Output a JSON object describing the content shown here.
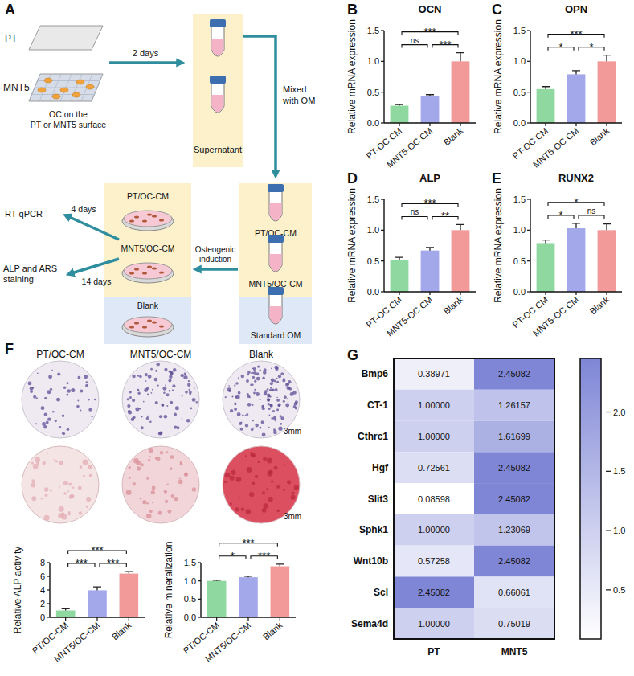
{
  "diagram": {
    "panel": "A",
    "plates": [
      "PT",
      "MNT5"
    ],
    "plate_note": "OC on the PT or MNT5 surface",
    "transfer_time": "2 days",
    "supernatant_label": "Supernatant",
    "mix_label": "Mixed with OM",
    "media": [
      "PT/OC-CM",
      "MNT5/OC-CM",
      "Standard OM"
    ],
    "induction_label": "Osteogenic induction",
    "cultures": [
      "PT/OC-CM",
      "MNT5/OC-CM",
      "Blank"
    ],
    "outputs": [
      {
        "label": "RT-qPCR",
        "time": "4 days"
      },
      {
        "label": "ALP and ARS staining",
        "time": "14 days"
      }
    ]
  },
  "staining": {
    "panel": "F",
    "columns": [
      "PT/OC-CM",
      "MNT5/OC-CM",
      "Blank"
    ],
    "scale_label": "3mm"
  },
  "chart_data": [
    {
      "type": "bar",
      "panel": "B",
      "title": "OCN",
      "y_label": "Relative mRNA expression",
      "categories": [
        "PT-OC CM",
        "MNT5-OC CM",
        "Blank"
      ],
      "values": [
        0.28,
        0.43,
        1.0
      ],
      "errors": [
        0.02,
        0.03,
        0.14
      ],
      "colors": [
        "#8fd8a0",
        "#a3a8ea",
        "#f29a9a"
      ],
      "ylim": [
        0,
        1.5
      ],
      "yticks": [
        {
          "value": 0,
          "label": "0.0"
        },
        {
          "value": 0.5,
          "label": "0.5"
        },
        {
          "value": 1,
          "label": "1.0"
        },
        {
          "value": 1.5,
          "label": "1.5"
        }
      ],
      "annotations": [
        {
          "between": [
            "PT-OC CM",
            "Blank"
          ],
          "label": "***"
        },
        {
          "between": [
            "PT-OC CM",
            "MNT5-OC CM"
          ],
          "label": "ns"
        },
        {
          "between": [
            "MNT5-OC CM",
            "Blank"
          ],
          "label": "***"
        }
      ]
    },
    {
      "type": "bar",
      "panel": "C",
      "title": "OPN",
      "y_label": "Relative mRNA expression",
      "categories": [
        "PT-OC CM",
        "MNT5-OC CM",
        "Blank"
      ],
      "values": [
        0.55,
        0.79,
        1.0
      ],
      "errors": [
        0.04,
        0.06,
        0.1
      ],
      "colors": [
        "#8fd8a0",
        "#a3a8ea",
        "#f29a9a"
      ],
      "ylim": [
        0,
        1.5
      ],
      "yticks": [
        {
          "value": 0,
          "label": "0.0"
        },
        {
          "value": 0.5,
          "label": "0.5"
        },
        {
          "value": 1,
          "label": "1.0"
        },
        {
          "value": 1.5,
          "label": "1.5"
        }
      ],
      "annotations": [
        {
          "between": [
            "PT-OC CM",
            "Blank"
          ],
          "label": "***"
        },
        {
          "between": [
            "PT-OC CM",
            "MNT5-OC CM"
          ],
          "label": "*"
        },
        {
          "between": [
            "MNT5-OC CM",
            "Blank"
          ],
          "label": "*"
        }
      ]
    },
    {
      "type": "bar",
      "panel": "D",
      "title": "ALP",
      "y_label": "Relative mRNA expression",
      "categories": [
        "PT-OC CM",
        "MNT5-OC CM",
        "Blank"
      ],
      "values": [
        0.52,
        0.67,
        1.0
      ],
      "errors": [
        0.04,
        0.05,
        0.09
      ],
      "colors": [
        "#8fd8a0",
        "#a3a8ea",
        "#f29a9a"
      ],
      "ylim": [
        0,
        1.5
      ],
      "yticks": [
        {
          "value": 0,
          "label": "0.0"
        },
        {
          "value": 0.5,
          "label": "0.5"
        },
        {
          "value": 1,
          "label": "1.0"
        },
        {
          "value": 1.5,
          "label": "1.5"
        }
      ],
      "annotations": [
        {
          "between": [
            "PT-OC CM",
            "Blank"
          ],
          "label": "***"
        },
        {
          "between": [
            "PT-OC CM",
            "MNT5-OC CM"
          ],
          "label": "ns"
        },
        {
          "between": [
            "MNT5-OC CM",
            "Blank"
          ],
          "label": "**"
        }
      ]
    },
    {
      "type": "bar",
      "panel": "E",
      "title": "RUNX2",
      "y_label": "Relative mRNA expression",
      "categories": [
        "PT-OC CM",
        "MNT5-OC CM",
        "Blank"
      ],
      "values": [
        0.79,
        1.03,
        1.0
      ],
      "errors": [
        0.05,
        0.08,
        0.1
      ],
      "colors": [
        "#8fd8a0",
        "#a3a8ea",
        "#f29a9a"
      ],
      "ylim": [
        0,
        1.5
      ],
      "yticks": [
        {
          "value": 0,
          "label": "0.0"
        },
        {
          "value": 0.5,
          "label": "0.5"
        },
        {
          "value": 1,
          "label": "1.0"
        },
        {
          "value": 1.5,
          "label": "1.5"
        }
      ],
      "annotations": [
        {
          "between": [
            "PT-OC CM",
            "Blank"
          ],
          "label": "*"
        },
        {
          "between": [
            "PT-OC CM",
            "MNT5-OC CM"
          ],
          "label": "*"
        },
        {
          "between": [
            "MNT5-OC CM",
            "Blank"
          ],
          "label": "ns"
        }
      ]
    },
    {
      "type": "bar",
      "y_label": "Relative ALP activity",
      "categories": [
        "PT/OC-CM",
        "MNT5/OC-CM",
        "Blank"
      ],
      "values": [
        1.0,
        3.95,
        6.4
      ],
      "errors": [
        0.25,
        0.5,
        0.3
      ],
      "colors": [
        "#8fd8a0",
        "#a3a8ea",
        "#f29a9a"
      ],
      "ylim": [
        0,
        8
      ],
      "yticks": [
        0,
        2,
        4,
        6,
        8
      ],
      "annotations": [
        {
          "between": [
            "PT/OC-CM",
            "Blank"
          ],
          "label": "***"
        },
        {
          "between": [
            "PT/OC-CM",
            "MNT5/OC-CM"
          ],
          "label": "***"
        },
        {
          "between": [
            "MNT5/OC-CM",
            "Blank"
          ],
          "label": "***"
        }
      ]
    },
    {
      "type": "bar",
      "y_label": "Relative mineralization",
      "categories": [
        "PT/OC-CM",
        "MNT5/OC-CM",
        "Blank"
      ],
      "values": [
        1.0,
        1.1,
        1.4
      ],
      "errors": [
        0.02,
        0.03,
        0.06
      ],
      "colors": [
        "#8fd8a0",
        "#a3a8ea",
        "#f29a9a"
      ],
      "ylim": [
        0,
        1.5
      ],
      "yticks": [
        {
          "value": 0,
          "label": "0.0"
        },
        {
          "value": 0.5,
          "label": "0.5"
        },
        {
          "value": 1,
          "label": "1.0"
        },
        {
          "value": 1.5,
          "label": "1.5"
        }
      ],
      "annotations": [
        {
          "between": [
            "PT/OC-CM",
            "Blank"
          ],
          "label": "***"
        },
        {
          "between": [
            "PT/OC-CM",
            "MNT5/OC-CM"
          ],
          "label": "*"
        },
        {
          "between": [
            "MNT5/OC-CM",
            "Blank"
          ],
          "label": "***"
        }
      ]
    },
    {
      "type": "heatmap",
      "panel": "G",
      "rows": [
        "Bmp6",
        "CT-1",
        "Cthrc1",
        "Hgf",
        "Slit3",
        "Sphk1",
        "Wnt10b",
        "Scl",
        "Sema4d"
      ],
      "columns": [
        "PT",
        "MNT5"
      ],
      "values": [
        [
          0.38971,
          2.45082
        ],
        [
          1.0,
          1.26157
        ],
        [
          1.0,
          1.61699
        ],
        [
          0.72561,
          2.45082
        ],
        [
          0.08598,
          2.45082
        ],
        [
          1.0,
          1.23069
        ],
        [
          0.57258,
          2.45082
        ],
        [
          2.45082,
          0.66061
        ],
        [
          1.0,
          0.75019
        ]
      ],
      "value_labels": [
        [
          "0.38971",
          "2.45082"
        ],
        [
          "1.00000",
          "1.26157"
        ],
        [
          "1.00000",
          "1.61699"
        ],
        [
          "0.72561",
          "2.45082"
        ],
        [
          "0.08598",
          "2.45082"
        ],
        [
          "1.00000",
          "1.23069"
        ],
        [
          "0.57258",
          "2.45082"
        ],
        [
          "2.45082",
          "0.66061"
        ],
        [
          "1.00000",
          "0.75019"
        ]
      ],
      "color": "#7f86d6",
      "colorbar_range": [
        0.08598,
        2.45082
      ],
      "colorbar_ticks": [
        {
          "value": 0.5,
          "label": "0.5"
        },
        {
          "value": 1,
          "label": "1.0"
        },
        {
          "value": 1.5,
          "label": "1.5"
        },
        {
          "value": 2,
          "label": "2.0"
        }
      ]
    }
  ]
}
